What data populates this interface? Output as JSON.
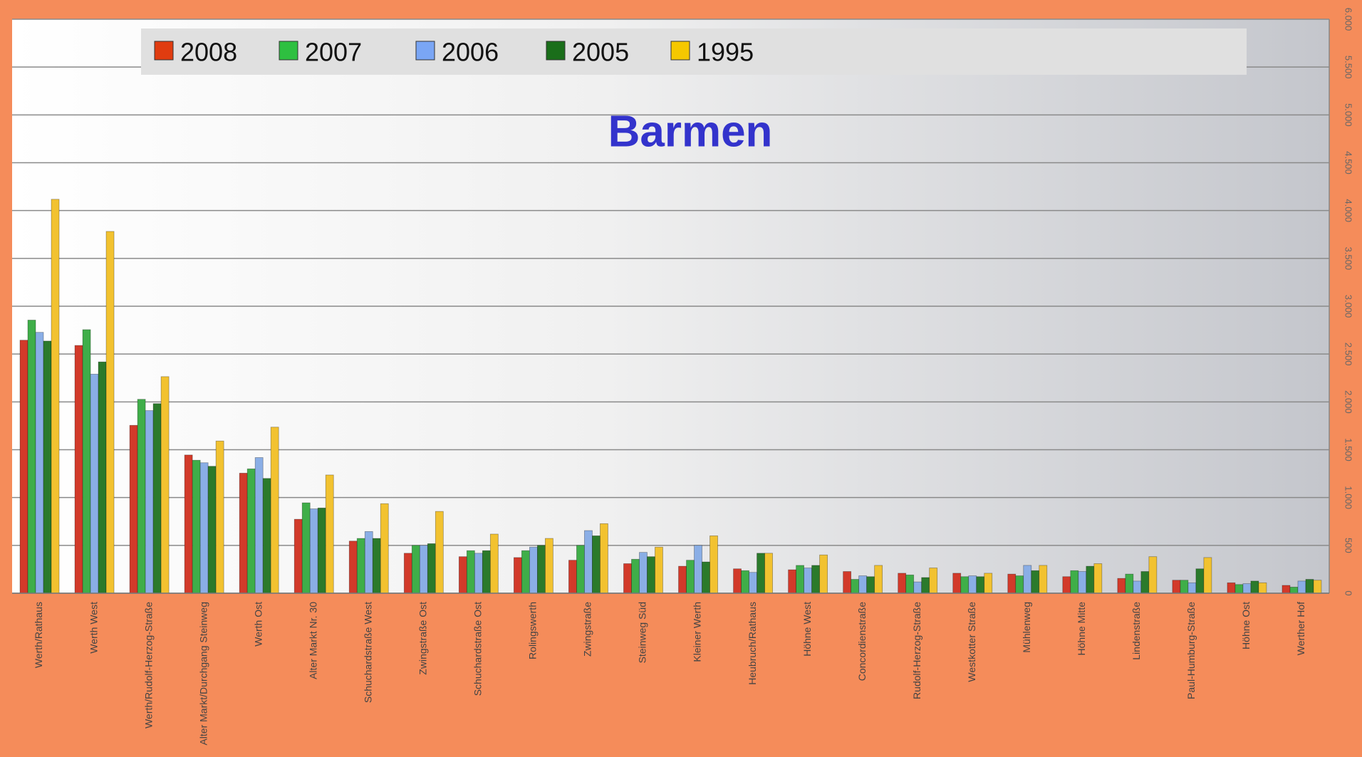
{
  "chart_data": {
    "type": "bar",
    "title": "Barmen",
    "categories": [
      "Werth/Rathaus",
      "Werth West",
      "Werth/Rudolf-Herzog-Straße",
      "Alter Markt/Durchgang Steinweg",
      "Werth Ost",
      "Alter Markt Nr. 30",
      "Schuchardstraße West",
      "Zwingstraße Ost",
      "Schuchardstraße Ost",
      "Rolingswerth",
      "Zwingstraße",
      "Steinweg Süd",
      "Kleiner Werth",
      "Heubruch/Rathaus",
      "Höhne West",
      "Concordienstraße",
      "Rudolf-Herzog-Straße",
      "Westkotter Straße",
      "Mühlenweg",
      "Höhne Mitte",
      "Lindenstraße",
      "Paul-Humburg-Straße",
      "Höhne Ost",
      "Werther Hof"
    ],
    "series": [
      {
        "name": "2008",
        "color": "#d23a2a",
        "legend_color": "#e03c10",
        "values": [
          2645,
          2590,
          1755,
          1445,
          1255,
          773,
          545,
          418,
          382,
          373,
          345,
          309,
          282,
          255,
          245,
          227,
          209,
          209,
          200,
          173,
          155,
          136,
          109,
          82
        ]
      },
      {
        "name": "2007",
        "color": "#3fae49",
        "legend_color": "#2ec040",
        "values": [
          2855,
          2755,
          2027,
          1390,
          1300,
          945,
          573,
          500,
          445,
          445,
          500,
          355,
          345,
          236,
          291,
          145,
          191,
          173,
          182,
          236,
          200,
          136,
          91,
          64
        ]
      },
      {
        "name": "2006",
        "color": "#8aaee6",
        "legend_color": "#7aa6f5",
        "values": [
          2727,
          2290,
          1909,
          1364,
          1418,
          882,
          645,
          500,
          418,
          482,
          655,
          427,
          500,
          218,
          264,
          182,
          118,
          182,
          291,
          227,
          127,
          109,
          100,
          127
        ]
      },
      {
        "name": "2005",
        "color": "#2b7a2b",
        "legend_color": "#1a6e1a",
        "values": [
          2636,
          2418,
          1982,
          1327,
          1200,
          891,
          573,
          518,
          445,
          500,
          600,
          382,
          327,
          418,
          291,
          173,
          164,
          173,
          236,
          282,
          227,
          255,
          127,
          145
        ]
      },
      {
        "name": "1995",
        "color": "#f2c230",
        "legend_color": "#f5c800",
        "values": [
          4118,
          3782,
          2264,
          1591,
          1736,
          1236,
          936,
          855,
          618,
          573,
          727,
          482,
          600,
          418,
          400,
          291,
          264,
          209,
          291,
          309,
          382,
          373,
          109,
          136
        ]
      }
    ],
    "ylim": [
      0,
      6000
    ],
    "yticks": [
      0,
      500,
      {
        "value": 1000,
        "label": "1.000"
      },
      {
        "value": 1500,
        "label": "1.500"
      },
      {
        "value": 2000,
        "label": "2.000"
      },
      {
        "value": 2500,
        "label": "2.500"
      },
      {
        "value": 3000,
        "label": "3.000"
      },
      {
        "value": 3500,
        "label": "3.500"
      },
      {
        "value": 4000,
        "label": "4.000"
      },
      {
        "value": 4500,
        "label": "4.500"
      },
      {
        "value": 5000,
        "label": "5.000"
      },
      {
        "value": 5500,
        "label": "5.500"
      },
      {
        "value": 6000,
        "label": "6.000"
      }
    ],
    "grid": true
  }
}
